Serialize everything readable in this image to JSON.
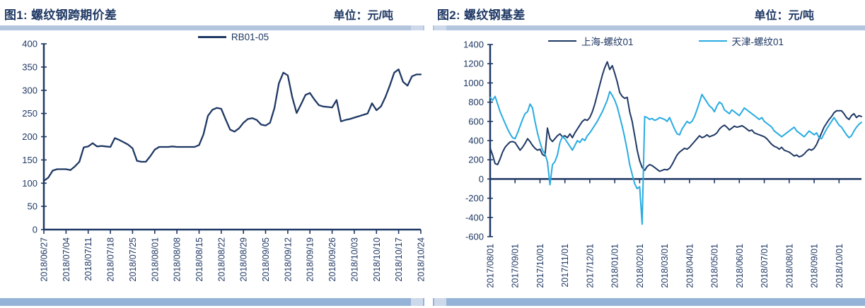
{
  "page": {
    "background": "#ffffff"
  },
  "colors": {
    "navy": "#1f3864",
    "cyan": "#29abe2",
    "divider": "#b4c6dd",
    "divider_cap": "#cdd9ea",
    "footer": "#95b3d7"
  },
  "charts": [
    {
      "title": "图1: 螺纹钢跨期价差",
      "unit_label": "单位：元/吨",
      "chart_data": {
        "type": "line",
        "title": "螺纹钢跨期价差",
        "ylabel": "元/吨",
        "ylim": [
          0,
          400
        ],
        "ytick_step": 50,
        "grid": false,
        "legend_position": "top-center",
        "label_every_points": 5,
        "x_labels": [
          "2018/06/27",
          "2018/07/04",
          "2018/07/11",
          "2018/07/18",
          "2018/07/25",
          "2018/08/01",
          "2018/08/08",
          "2018/08/15",
          "2018/08/22",
          "2018/08/29",
          "2018/09/05",
          "2018/09/12",
          "2018/09/19",
          "2018/09/26",
          "2018/10/03",
          "2018/10/10",
          "2018/10/17",
          "2018/10/24"
        ],
        "series": [
          {
            "name": "RB01-05",
            "color": "#1f3864",
            "values": [
              105,
              112,
              127,
              130,
              130,
              130,
              128,
              136,
              146,
              177,
              179,
              186,
              179,
              180,
              179,
              178,
              197,
              193,
              188,
              183,
              175,
              148,
              146,
              146,
              158,
              172,
              178,
              178,
              178,
              179,
              178,
              178,
              178,
              178,
              178,
              182,
              205,
              245,
              258,
              262,
              260,
              237,
              215,
              211,
              218,
              230,
              238,
              240,
              236,
              226,
              224,
              230,
              262,
              315,
              338,
              332,
              285,
              251,
              270,
              290,
              294,
              280,
              268,
              265,
              264,
              263,
              279,
              233,
              236,
              238,
              241,
              244,
              247,
              250,
              272,
              257,
              265,
              285,
              310,
              338,
              345,
              318,
              310,
              330,
              334,
              334
            ]
          }
        ]
      }
    },
    {
      "title": "图2: 螺纹钢基差",
      "unit_label": "单位：元/吨",
      "chart_data": {
        "type": "line",
        "title": "螺纹钢基差",
        "ylabel": "元/吨",
        "ylim": [
          -600,
          1400
        ],
        "ytick_step": 200,
        "grid": false,
        "legend_position": "top-center",
        "label_every_points": 10,
        "x_labels": [
          "2017/08/01",
          "2017/09/01",
          "2017/10/01",
          "2017/11/01",
          "2017/12/01",
          "2018/01/01",
          "2018/02/01",
          "2018/03/01",
          "2018/04/01",
          "2018/05/01",
          "2018/06/01",
          "2018/07/01",
          "2018/08/01",
          "2018/09/01",
          "2018/10/01"
        ],
        "series": [
          {
            "name": "上海-螺纹01",
            "color": "#1f3864",
            "values": [
              320,
              250,
              160,
              150,
              210,
              280,
              330,
              360,
              385,
              390,
              380,
              340,
              300,
              330,
              370,
              420,
              390,
              350,
              320,
              300,
              310,
              255,
              240,
              530,
              420,
              390,
              420,
              450,
              470,
              440,
              450,
              430,
              470,
              430,
              480,
              520,
              560,
              600,
              620,
              610,
              640,
              700,
              780,
              880,
              980,
              1080,
              1160,
              1220,
              1140,
              1180,
              1100,
              1010,
              900,
              860,
              840,
              850,
              700,
              600,
              450,
              300,
              190,
              120,
              90,
              130,
              150,
              140,
              120,
              100,
              80,
              90,
              100,
              95,
              110,
              150,
              200,
              250,
              280,
              300,
              320,
              310,
              330,
              360,
              390,
              420,
              450,
              430,
              440,
              460,
              440,
              450,
              460,
              480,
              520,
              545,
              560,
              540,
              510,
              530,
              550,
              540,
              545,
              555,
              540,
              520,
              500,
              510,
              480,
              470,
              460,
              450,
              440,
              420,
              390,
              360,
              340,
              330,
              310,
              330,
              300,
              290,
              280,
              260,
              240,
              250,
              230,
              240,
              260,
              290,
              310,
              300,
              320,
              360,
              420,
              480,
              540,
              580,
              620,
              650,
              690,
              710,
              710,
              710,
              680,
              640,
              620,
              660,
              680,
              640,
              660,
              650
            ]
          },
          {
            "name": "天津-螺纹01",
            "color": "#29abe2",
            "values": [
              850,
              820,
              860,
              780,
              700,
              640,
              580,
              520,
              470,
              430,
              420,
              480,
              550,
              620,
              680,
              700,
              780,
              740,
              600,
              480,
              380,
              300,
              260,
              180,
              -60,
              150,
              180,
              250,
              380,
              440,
              420,
              380,
              340,
              300,
              350,
              400,
              380,
              420,
              400,
              450,
              480,
              520,
              560,
              600,
              650,
              700,
              760,
              820,
              910,
              870,
              820,
              750,
              650,
              550,
              430,
              300,
              150,
              50,
              -50,
              -100,
              -80,
              -470,
              650,
              640,
              620,
              630,
              610,
              620,
              640,
              630,
              620,
              600,
              640,
              580,
              520,
              470,
              460,
              520,
              560,
              600,
              580,
              600,
              650,
              720,
              800,
              880,
              840,
              800,
              760,
              740,
              700,
              760,
              800,
              780,
              720,
              700,
              680,
              720,
              700,
              680,
              660,
              700,
              740,
              720,
              700,
              680,
              660,
              640,
              620,
              640,
              600,
              580,
              560,
              540,
              500,
              480,
              460,
              440,
              460,
              480,
              500,
              520,
              540,
              500,
              480,
              460,
              440,
              470,
              500,
              480,
              460,
              480,
              430,
              420,
              470,
              520,
              560,
              600,
              640,
              600,
              560,
              540,
              500,
              460,
              430,
              450,
              500,
              540,
              570,
              590
            ]
          }
        ]
      }
    }
  ]
}
